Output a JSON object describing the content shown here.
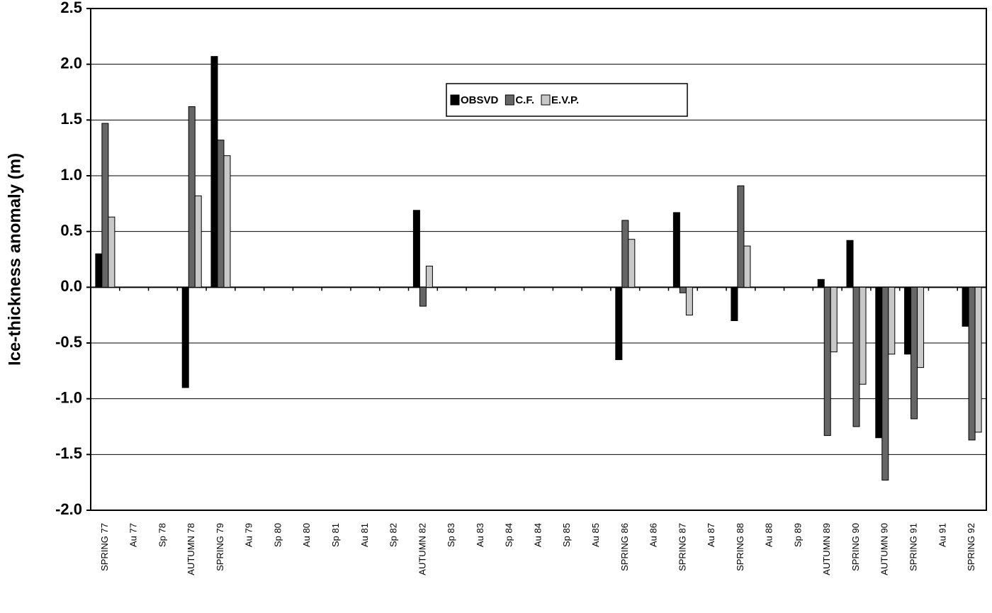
{
  "chart_data": {
    "type": "bar",
    "y_label": "Ice-thickness anomaly (m)",
    "categories": [
      "SPRING 77",
      "Au 77",
      "Sp 78",
      "AUTUMN 78",
      "SPRING 79",
      "Au 79",
      "Sp 80",
      "Au 80",
      "Sp 81",
      "Au 81",
      "Sp 82",
      "AUTUMN 82",
      "Sp 83",
      "Au 83",
      "Sp 84",
      "Au 84",
      "Sp 85",
      "Au 85",
      "SPRING 86",
      "Au 86",
      "SPRING 87",
      "Au 87",
      "SPRING 88",
      "Au 88",
      "Sp 89",
      "AUTUMN 89",
      "SPRING 90",
      "AUTUMN 90",
      "SPRING 91",
      "Au 91",
      "SPRING 92"
    ],
    "series": [
      {
        "name": "OBSVD",
        "color": "#000000",
        "values": [
          0.3,
          null,
          null,
          -0.9,
          2.07,
          null,
          null,
          null,
          null,
          null,
          null,
          0.69,
          null,
          null,
          null,
          null,
          null,
          null,
          -0.65,
          null,
          0.67,
          null,
          -0.3,
          null,
          null,
          0.07,
          0.42,
          -1.35,
          -0.6,
          null,
          -0.35
        ]
      },
      {
        "name": "C.F.",
        "color": "#666666",
        "values": [
          1.47,
          null,
          null,
          1.62,
          1.32,
          null,
          null,
          null,
          null,
          null,
          null,
          -0.17,
          null,
          null,
          null,
          null,
          null,
          null,
          0.6,
          null,
          -0.05,
          null,
          0.91,
          null,
          null,
          -1.33,
          -1.25,
          -1.73,
          -1.18,
          null,
          -1.37
        ]
      },
      {
        "name": "E.V.P.",
        "color": "#c8c8c8",
        "values": [
          0.63,
          null,
          null,
          0.82,
          1.18,
          null,
          null,
          null,
          null,
          null,
          null,
          0.19,
          null,
          null,
          null,
          null,
          null,
          null,
          0.43,
          null,
          -0.25,
          null,
          0.37,
          null,
          null,
          -0.58,
          -0.87,
          -0.6,
          -0.72,
          null,
          -1.3
        ]
      }
    ],
    "ylim": [
      -2,
      2.5
    ],
    "yticks": [
      {
        "value": -2,
        "label": "-2.0"
      },
      -1.5,
      {
        "value": -1,
        "label": "-1.0"
      },
      -0.5,
      {
        "value": 0,
        "label": "0.0"
      },
      0.5,
      {
        "value": 1,
        "label": "1.0"
      },
      1.5,
      {
        "value": 2,
        "label": "2.0"
      },
      2.5
    ],
    "grid": true
  }
}
